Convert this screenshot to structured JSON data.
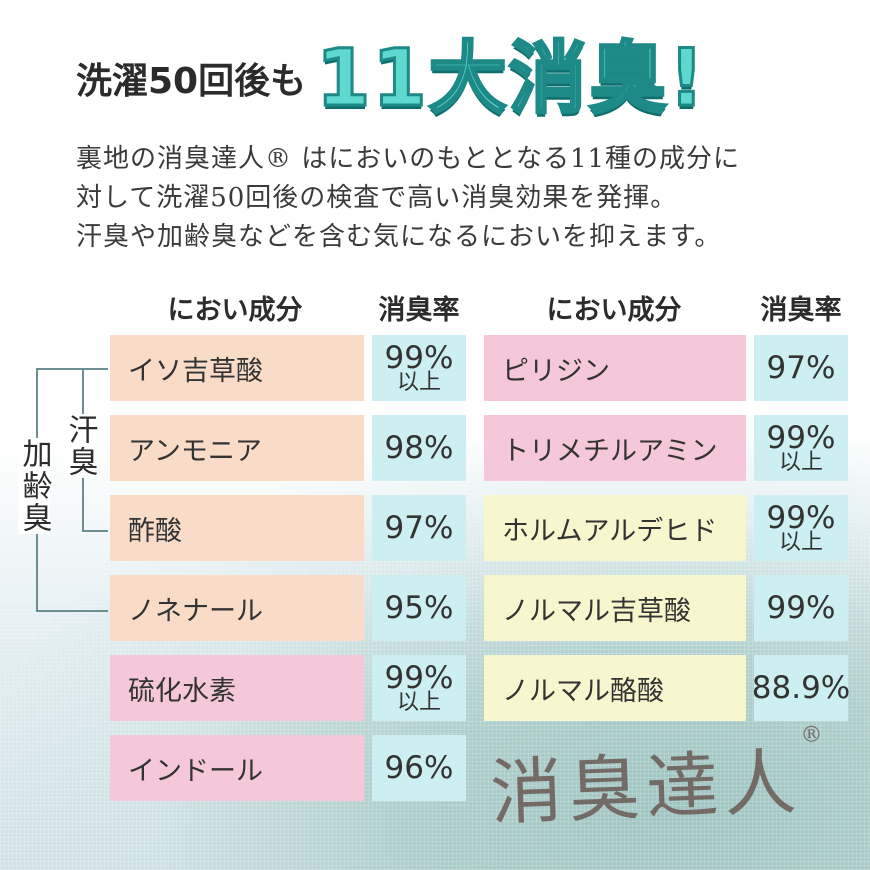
{
  "headline": {
    "small": "洗濯50回後も",
    "big": "11大消臭!"
  },
  "intro": [
    "裏地の消臭達人® はにおいのもととなる11種の成分に",
    "対して洗濯50回後の検査で高い消臭効果を発揮。",
    "汗臭や加齢臭などを含む気になるにおいを抑えます。"
  ],
  "table_headers": {
    "left_name": "におい成分",
    "left_rate": "消臭率",
    "right_name": "におい成分",
    "right_rate": "消臭率"
  },
  "left_rows": [
    {
      "name": "イソ吉草酸",
      "rate": "99%",
      "sub": "以上",
      "color": "#f8dcc8"
    },
    {
      "name": "アンモニア",
      "rate": "98%",
      "sub": "",
      "color": "#f8dcc8"
    },
    {
      "name": "酢酸",
      "rate": "97%",
      "sub": "",
      "color": "#f8dcc8"
    },
    {
      "name": "ノネナール",
      "rate": "95%",
      "sub": "",
      "color": "#f8dcc8"
    },
    {
      "name": "硫化水素",
      "rate": "99%",
      "sub": "以上",
      "color": "#f4c8d8"
    },
    {
      "name": "インドール",
      "rate": "96%",
      "sub": "",
      "color": "#f4c8d8"
    }
  ],
  "right_rows": [
    {
      "name": "ピリジン",
      "rate": "97%",
      "sub": "",
      "color": "#f4c8d8"
    },
    {
      "name": "トリメチルアミン",
      "rate": "99%",
      "sub": "以上",
      "color": "#f4c8d8"
    },
    {
      "name": "ホルムアルデヒド",
      "rate": "99%",
      "sub": "以上",
      "color": "#f8f6ce"
    },
    {
      "name": "ノルマル吉草酸",
      "rate": "99%",
      "sub": "",
      "color": "#f8f6ce"
    },
    {
      "name": "ノルマル酪酸",
      "rate": "88.9%",
      "sub": "",
      "color": "#f8f6ce"
    }
  ],
  "bracket_labels": {
    "sweat": "汗臭",
    "aging": "加齢臭"
  },
  "brand": {
    "name": "消臭達人",
    "mark": "®"
  },
  "colors": {
    "accent": "#5fd8d0",
    "rate_bg": "#cdeff1",
    "peach": "#f8dcc8",
    "pink": "#f4c8d8",
    "cream": "#f8f6ce"
  }
}
